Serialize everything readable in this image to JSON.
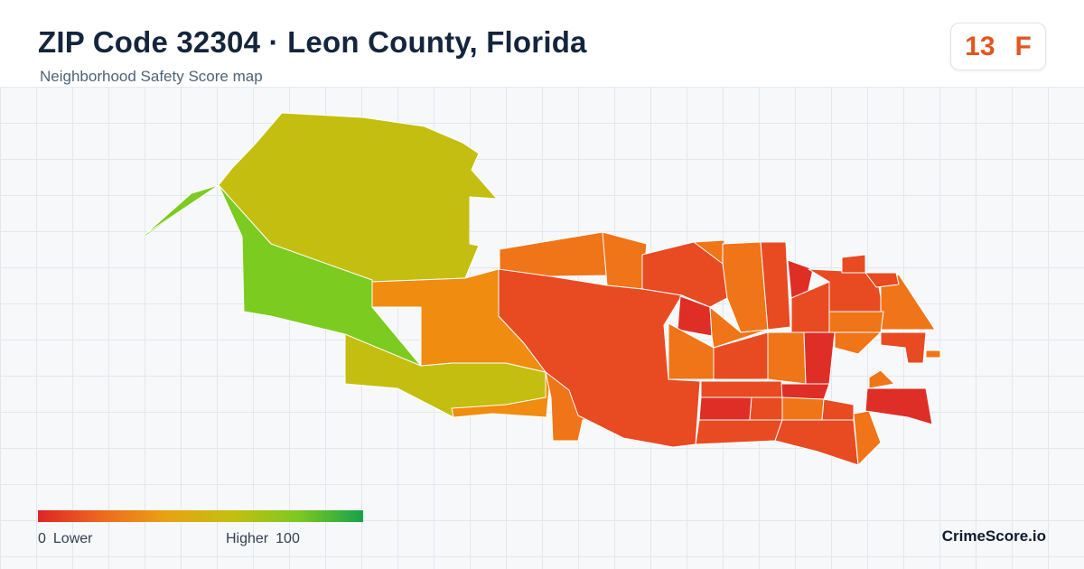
{
  "header": {
    "title": "ZIP Code 32304 · Leon County, Florida",
    "subtitle": "Neighborhood Safety Score map"
  },
  "grade_badge": {
    "score": "13",
    "letter": "F",
    "color": "#e2561f"
  },
  "legend": {
    "low_value": "0",
    "low_label": "Lower",
    "high_label": "Higher",
    "high_value": "100",
    "colors": [
      "#dc2626",
      "#ef6a1f",
      "#e8a314",
      "#c3bf10",
      "#7ec822",
      "#16a34a"
    ]
  },
  "brand": "CrimeScore.io",
  "map": {
    "region_colors": {
      "yellow_green": "#c4be10",
      "green": "#7ccb20",
      "orange": "#f08c10",
      "deep_orange": "#f07418",
      "red_orange": "#e84a22",
      "red": "#de2e26",
      "crimson": "#e23a28"
    }
  }
}
